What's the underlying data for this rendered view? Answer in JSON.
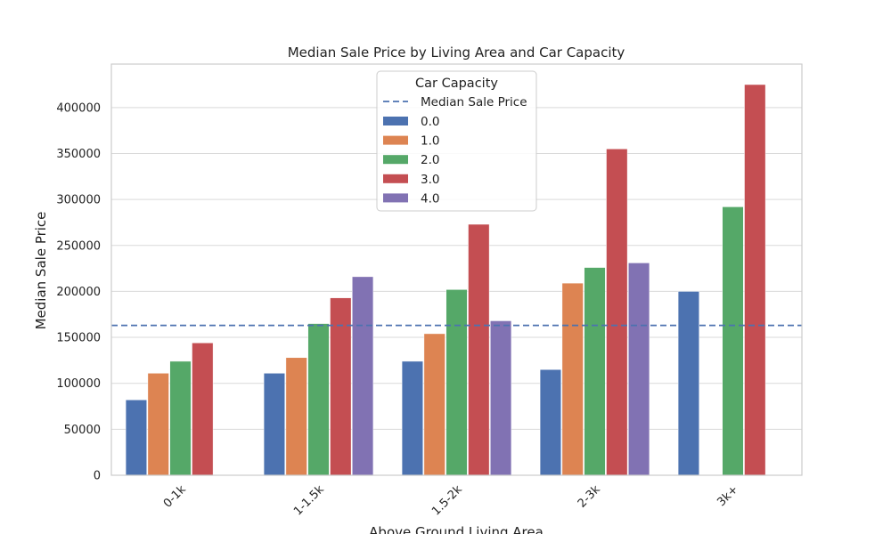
{
  "chart_data": {
    "type": "bar",
    "title": "Median Sale Price by Living Area and Car Capacity",
    "xlabel": "Above Ground Living Area",
    "ylabel": "Median Sale Price",
    "categories": [
      "0-1k",
      "1-1.5k",
      "1.5-2k",
      "2-3k",
      "3k+"
    ],
    "ylim": [
      0,
      425000
    ],
    "yticks": [
      0,
      50000,
      100000,
      150000,
      200000,
      250000,
      300000,
      350000,
      400000
    ],
    "grid": true,
    "legend": {
      "title": "Car Capacity",
      "placement": "top-center",
      "reference_label": "Median Sale Price"
    },
    "reference_line": {
      "value": 163000,
      "style": "dashed",
      "color": "#4c72b0"
    },
    "series": [
      {
        "name": "0.0",
        "color": "#4c72b0",
        "values": [
          82000,
          111000,
          124000,
          115000,
          200000
        ]
      },
      {
        "name": "1.0",
        "color": "#dd8452",
        "values": [
          111000,
          128000,
          154000,
          209000,
          null
        ]
      },
      {
        "name": "2.0",
        "color": "#55a868",
        "values": [
          124000,
          165000,
          202000,
          226000,
          292000
        ]
      },
      {
        "name": "3.0",
        "color": "#c44e52",
        "values": [
          144000,
          193000,
          273000,
          355000,
          425000
        ]
      },
      {
        "name": "4.0",
        "color": "#8172b3",
        "values": [
          null,
          216000,
          168000,
          231000,
          null
        ]
      }
    ]
  }
}
